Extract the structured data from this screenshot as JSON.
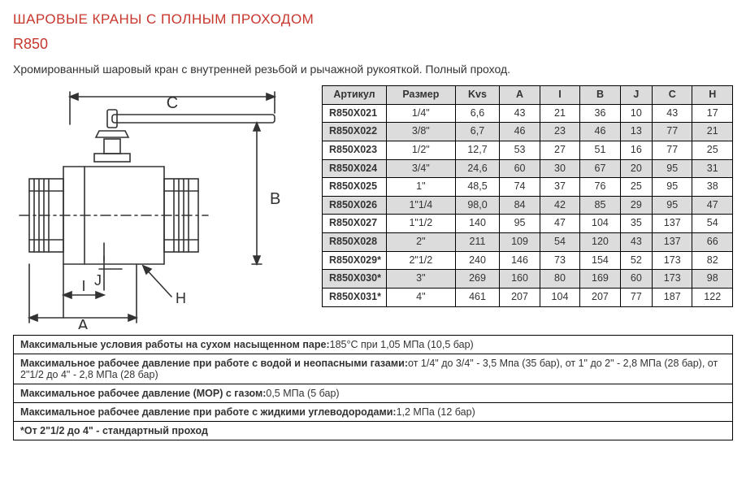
{
  "title": "ШАРОВЫЕ КРАНЫ С ПОЛНЫМ ПРОХОДОМ",
  "model": "R850",
  "description": "Хромированный шаровый кран с внутренней резьбой и рычажной рукояткой. Полный проход.",
  "diagram": {
    "labels": {
      "A": "A",
      "B": "B",
      "C": "C",
      "H": "H",
      "I": "I",
      "J": "J"
    },
    "stroke": "#333333",
    "bg": "#ffffff"
  },
  "table": {
    "headers": [
      "Артикул",
      "Размер",
      "Kvs",
      "A",
      "I",
      "B",
      "J",
      "C",
      "H"
    ],
    "rows": [
      [
        "R850X021",
        "1/4\"",
        "6,6",
        "43",
        "21",
        "36",
        "10",
        "43",
        "17"
      ],
      [
        "R850X022",
        "3/8\"",
        "6,7",
        "46",
        "23",
        "46",
        "13",
        "77",
        "21"
      ],
      [
        "R850X023",
        "1/2\"",
        "12,7",
        "53",
        "27",
        "51",
        "16",
        "77",
        "25"
      ],
      [
        "R850X024",
        "3/4\"",
        "24,6",
        "60",
        "30",
        "67",
        "20",
        "95",
        "31"
      ],
      [
        "R850X025",
        "1\"",
        "48,5",
        "74",
        "37",
        "76",
        "25",
        "95",
        "38"
      ],
      [
        "R850X026",
        "1\"1/4",
        "98,0",
        "84",
        "42",
        "85",
        "29",
        "95",
        "47"
      ],
      [
        "R850X027",
        "1\"1/2",
        "140",
        "95",
        "47",
        "104",
        "35",
        "137",
        "54"
      ],
      [
        "R850X028",
        "2\"",
        "211",
        "109",
        "54",
        "120",
        "43",
        "137",
        "66"
      ],
      [
        "R850X029*",
        "2\"1/2",
        "240",
        "146",
        "73",
        "154",
        "52",
        "173",
        "82"
      ],
      [
        "R850X030*",
        "3\"",
        "269",
        "160",
        "80",
        "169",
        "60",
        "173",
        "98"
      ],
      [
        "R850X031*",
        "4\"",
        "461",
        "207",
        "104",
        "207",
        "77",
        "187",
        "122"
      ]
    ]
  },
  "notes": [
    {
      "label": "Максимальные условия работы на сухом насыщенном паре:",
      "text": "185°C при 1,05 МПа (10,5 бар)"
    },
    {
      "label": "Максимальное рабочее давление при работе с водой и неопасными газами:",
      "text": "от 1/4\" до 3/4\" - 3,5 Мпа (35 бар), от 1\" до 2\" - 2,8 МПа (28 бар), от 2\"1/2 до 4\" - 2,8 МПа (28 бар)"
    },
    {
      "label": "Максимальное рабочее давление (MOP) с газом:",
      "text": "0,5 МПа (5 бар)"
    },
    {
      "label": "Максимальное рабочее давление при работе с жидкими углеводородами:",
      "text": "1,2 МПа (12 бар)"
    },
    {
      "label": "*От 2\"1/2 до 4\" - стандартный проход",
      "text": ""
    }
  ],
  "colors": {
    "accent": "#c8372d",
    "header_bg": "#dcdcdc",
    "border": "#000000",
    "text": "#333333"
  }
}
